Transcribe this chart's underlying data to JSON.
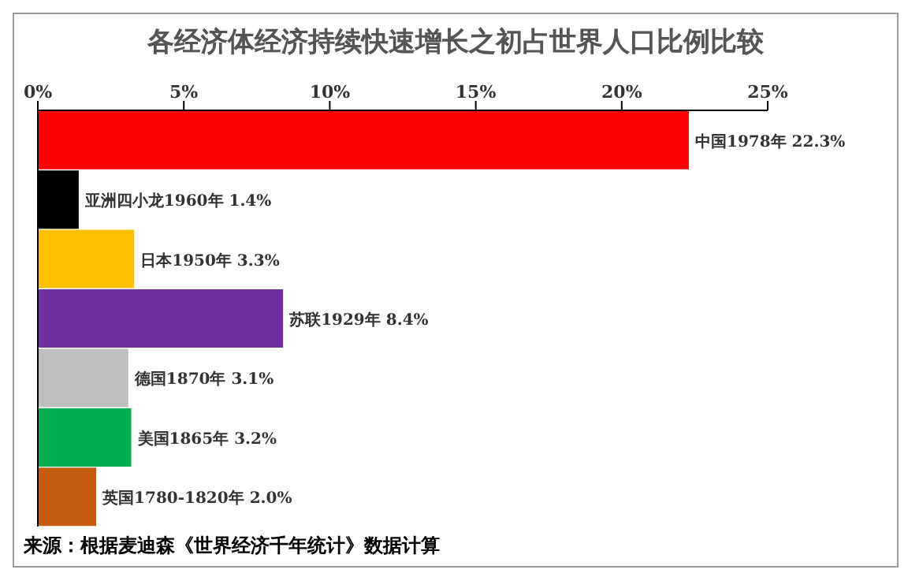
{
  "chart_data": {
    "type": "bar",
    "orientation": "horizontal",
    "title": "各经济体经济持续快速增长之初占世界人口比例比较",
    "categories": [
      "中国1978年",
      "亚洲四小龙1960年",
      "日本1950年",
      "苏联1929年",
      "德国1870年",
      "美国1865年",
      "英国1780-1820年"
    ],
    "values": [
      22.3,
      1.4,
      3.3,
      8.4,
      3.1,
      3.2,
      2.0
    ],
    "value_labels": [
      "22.3%",
      "1.4%",
      "3.3%",
      "8.4%",
      "3.1%",
      "3.2%",
      "2.0%"
    ],
    "colors": [
      "#ff0000",
      "#000000",
      "#ffc000",
      "#7030a0",
      "#bfbfbf",
      "#00b050",
      "#c55a11"
    ],
    "xlim": [
      0,
      25
    ],
    "xticks": [
      {
        "value": 0,
        "label": "0%"
      },
      {
        "value": 5,
        "label": "5%"
      },
      {
        "value": 10,
        "label": "10%"
      },
      {
        "value": 15,
        "label": "15%"
      },
      {
        "value": 20,
        "label": "20%"
      },
      {
        "value": 25,
        "label": "25%"
      }
    ],
    "tick_labels": "x",
    "grid": false,
    "annotations": [
      "来源：根据麦迪森《世界经济千年统计》数据计算"
    ]
  }
}
